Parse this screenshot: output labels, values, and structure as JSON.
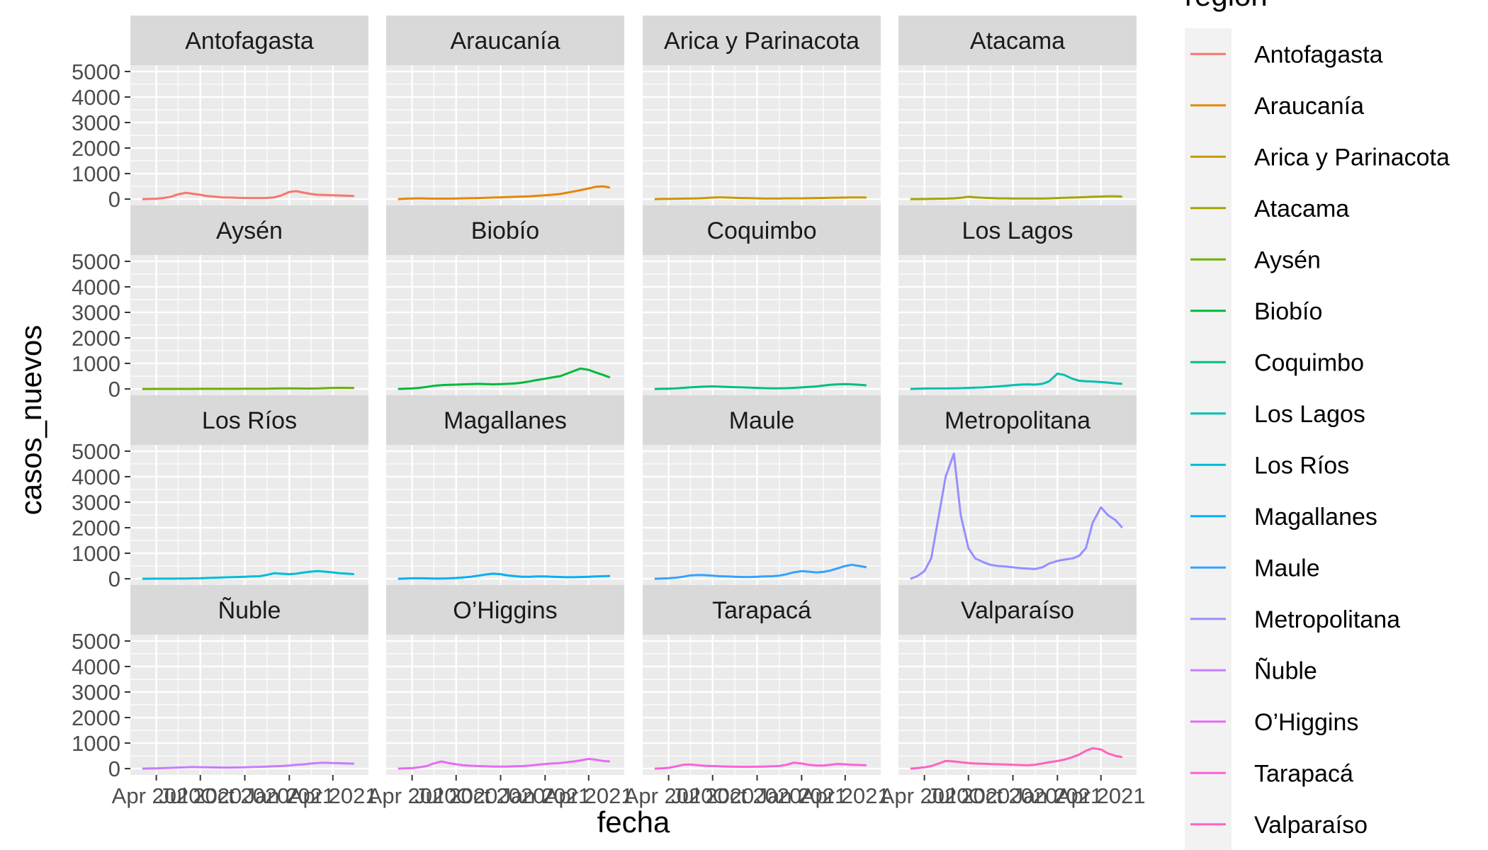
{
  "chart_data": {
    "type": "line",
    "facet_layout": {
      "rows": 4,
      "cols": 4,
      "shared_axes": true
    },
    "xlabel": "fecha",
    "ylabel": "casos_nuevos",
    "ylim": [
      0,
      5000
    ],
    "yticks": [
      0,
      1000,
      2000,
      3000,
      4000,
      5000
    ],
    "xlim": [
      "2020-03-03",
      "2021-05-20"
    ],
    "xticks": [
      {
        "date": "2020-04-01",
        "label": "Apr 2020"
      },
      {
        "date": "2020-07-01",
        "label": "Jul 2020"
      },
      {
        "date": "2020-10-01",
        "label": "Oct 2020"
      },
      {
        "date": "2021-01-01",
        "label": "Jan 2021"
      },
      {
        "date": "2021-04-01",
        "label": "Apr 2021"
      }
    ],
    "x_dates": [
      "2020-03-03",
      "2020-03-17",
      "2020-04-01",
      "2020-04-15",
      "2020-05-01",
      "2020-05-15",
      "2020-06-01",
      "2020-06-15",
      "2020-07-01",
      "2020-07-15",
      "2020-08-01",
      "2020-08-15",
      "2020-09-01",
      "2020-09-15",
      "2020-10-01",
      "2020-10-15",
      "2020-11-01",
      "2020-11-15",
      "2020-12-01",
      "2020-12-15",
      "2021-01-01",
      "2021-01-15",
      "2021-02-01",
      "2021-02-15",
      "2021-03-01",
      "2021-03-15",
      "2021-04-01",
      "2021-04-15",
      "2021-05-01",
      "2021-05-15"
    ],
    "grid": true,
    "legend": {
      "title": "region",
      "position": "right"
    },
    "series": [
      {
        "name": "Antofagasta",
        "color": "#F8766D",
        "values": [
          0,
          5,
          15,
          40,
          90,
          180,
          250,
          210,
          170,
          120,
          90,
          70,
          60,
          50,
          45,
          40,
          40,
          45,
          70,
          140,
          280,
          310,
          250,
          200,
          170,
          160,
          150,
          140,
          130,
          120
        ]
      },
      {
        "name": "Araucanía",
        "color": "#E58700",
        "values": [
          0,
          15,
          25,
          30,
          25,
          20,
          20,
          20,
          25,
          30,
          35,
          40,
          50,
          60,
          70,
          80,
          90,
          100,
          110,
          130,
          150,
          170,
          200,
          250,
          300,
          350,
          420,
          480,
          500,
          450
        ]
      },
      {
        "name": "Arica y Parinacota",
        "color": "#C99800",
        "values": [
          0,
          5,
          10,
          15,
          20,
          25,
          30,
          40,
          60,
          70,
          60,
          50,
          40,
          35,
          30,
          25,
          25,
          25,
          30,
          30,
          30,
          35,
          40,
          45,
          50,
          55,
          60,
          65,
          65,
          60
        ]
      },
      {
        "name": "Atacama",
        "color": "#A3A500",
        "values": [
          0,
          2,
          5,
          10,
          15,
          20,
          30,
          50,
          90,
          70,
          50,
          40,
          30,
          30,
          25,
          25,
          25,
          25,
          25,
          30,
          40,
          50,
          60,
          70,
          80,
          90,
          100,
          110,
          110,
          100
        ]
      },
      {
        "name": "Aysén",
        "color": "#6BB100",
        "values": [
          0,
          1,
          2,
          2,
          2,
          3,
          3,
          3,
          4,
          5,
          5,
          5,
          6,
          6,
          7,
          8,
          10,
          12,
          15,
          20,
          25,
          20,
          15,
          15,
          20,
          30,
          40,
          45,
          40,
          35
        ]
      },
      {
        "name": "Biobío",
        "color": "#00BA38",
        "values": [
          0,
          10,
          20,
          40,
          80,
          120,
          150,
          160,
          170,
          180,
          190,
          200,
          190,
          180,
          190,
          200,
          220,
          250,
          300,
          350,
          400,
          450,
          500,
          600,
          700,
          800,
          750,
          650,
          550,
          450
        ]
      },
      {
        "name": "Coquimbo",
        "color": "#00BF7D",
        "values": [
          0,
          5,
          10,
          20,
          40,
          60,
          80,
          90,
          100,
          90,
          80,
          70,
          60,
          50,
          40,
          30,
          25,
          25,
          30,
          40,
          60,
          80,
          100,
          130,
          160,
          180,
          190,
          180,
          160,
          140
        ]
      },
      {
        "name": "Los Lagos",
        "color": "#00C0AF",
        "values": [
          0,
          10,
          15,
          20,
          20,
          20,
          25,
          30,
          40,
          50,
          60,
          80,
          100,
          120,
          150,
          170,
          180,
          170,
          200,
          300,
          600,
          550,
          400,
          320,
          300,
          290,
          270,
          250,
          220,
          200
        ]
      },
      {
        "name": "Los Ríos",
        "color": "#00BCD8",
        "values": [
          0,
          2,
          5,
          5,
          5,
          10,
          10,
          15,
          20,
          30,
          40,
          50,
          60,
          70,
          80,
          90,
          100,
          150,
          220,
          200,
          180,
          200,
          250,
          280,
          300,
          280,
          250,
          220,
          200,
          180
        ]
      },
      {
        "name": "Magallanes",
        "color": "#00B0F6",
        "values": [
          0,
          10,
          20,
          20,
          15,
          10,
          10,
          15,
          30,
          50,
          80,
          120,
          170,
          200,
          180,
          130,
          100,
          80,
          80,
          90,
          90,
          80,
          70,
          60,
          60,
          70,
          80,
          90,
          100,
          110
        ]
      },
      {
        "name": "Maule",
        "color": "#35A2FF",
        "values": [
          0,
          10,
          20,
          40,
          80,
          130,
          150,
          140,
          120,
          100,
          90,
          80,
          70,
          70,
          80,
          90,
          100,
          120,
          180,
          250,
          300,
          280,
          250,
          270,
          320,
          400,
          500,
          550,
          500,
          450
        ]
      },
      {
        "name": "Metropolitana",
        "color": "#9590FF",
        "values": [
          0,
          100,
          300,
          800,
          2500,
          4000,
          4900,
          2500,
          1200,
          800,
          650,
          550,
          500,
          480,
          450,
          420,
          400,
          380,
          450,
          600,
          700,
          750,
          800,
          900,
          1200,
          2200,
          2800,
          2500,
          2300,
          2000
        ]
      },
      {
        "name": "Ñuble",
        "color": "#C77CFF",
        "values": [
          0,
          5,
          10,
          20,
          30,
          40,
          50,
          60,
          55,
          50,
          45,
          40,
          40,
          45,
          50,
          60,
          70,
          80,
          90,
          100,
          120,
          150,
          170,
          200,
          220,
          230,
          220,
          210,
          200,
          190
        ]
      },
      {
        "name": "O’Higgins",
        "color": "#E76BF3",
        "values": [
          0,
          10,
          20,
          50,
          100,
          200,
          280,
          220,
          170,
          130,
          110,
          100,
          90,
          80,
          80,
          80,
          90,
          100,
          120,
          150,
          180,
          200,
          220,
          250,
          280,
          320,
          380,
          350,
          300,
          280
        ]
      },
      {
        "name": "Tarapacá",
        "color": "#FA62DB",
        "values": [
          0,
          10,
          30,
          80,
          150,
          160,
          130,
          110,
          100,
          90,
          80,
          75,
          70,
          70,
          75,
          80,
          90,
          100,
          150,
          230,
          200,
          150,
          120,
          120,
          150,
          180,
          170,
          150,
          140,
          130
        ]
      },
      {
        "name": "Valparaíso",
        "color": "#FF62BC",
        "values": [
          0,
          20,
          50,
          100,
          200,
          300,
          280,
          250,
          220,
          200,
          190,
          180,
          170,
          160,
          150,
          140,
          130,
          150,
          200,
          250,
          300,
          350,
          450,
          550,
          700,
          800,
          750,
          600,
          500,
          450
        ]
      }
    ]
  }
}
